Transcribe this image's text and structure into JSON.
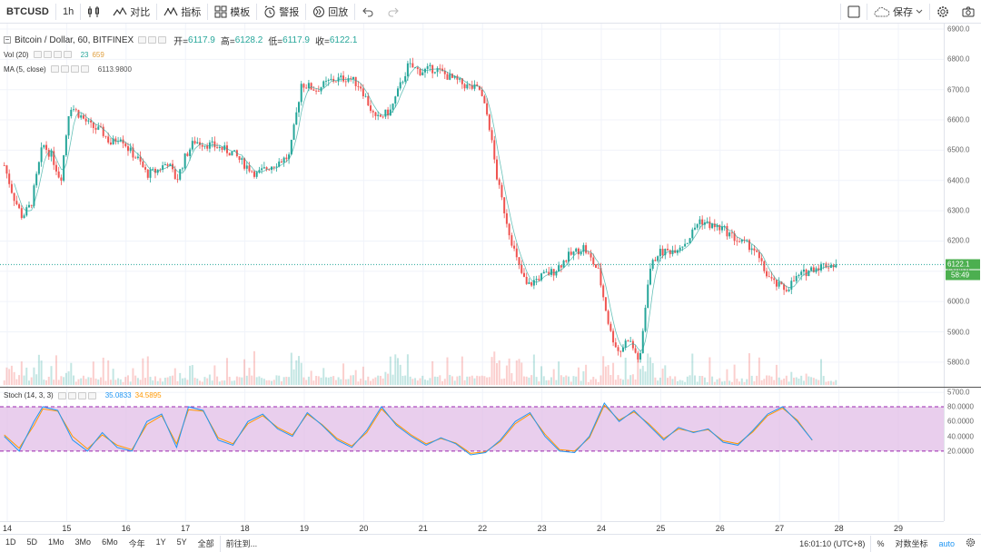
{
  "toolbar": {
    "symbol": "BTCUSD",
    "interval": "1h",
    "compare": "对比",
    "indicators": "指标",
    "templates": "模板",
    "alert": "警报",
    "replay": "回放",
    "save": "保存"
  },
  "legend": {
    "title": "Bitcoin / Dollar, 60, BITFINEX",
    "open_label": "开=",
    "open": "6117.9",
    "high_label": "高=",
    "high": "6128.2",
    "low_label": "低=",
    "low": "6117.9",
    "close_label": "收=",
    "close": "6122.1",
    "vol_label": "Vol (20)",
    "vol_a": "23",
    "vol_b": "659",
    "ma_label": "MA (5, close)",
    "ma_value": "6113.9800"
  },
  "price_axis": {
    "labels": [
      "6900.0",
      "6800.0",
      "6700.0",
      "6600.0",
      "6500.0",
      "6400.0",
      "6300.0",
      "6200.0",
      "6100.0",
      "6000.0",
      "5900.0",
      "5800.0",
      "5700.0"
    ],
    "last_price": "6122.1",
    "countdown": "58:49"
  },
  "stoch": {
    "label": "Stoch (14, 3, 3)",
    "k": "35.0833",
    "d": "34.5895",
    "axis_labels": [
      "80.0000",
      "60.0000",
      "40.0000",
      "20.0000"
    ]
  },
  "time_axis": [
    "14",
    "15",
    "16",
    "17",
    "18",
    "19",
    "20",
    "21",
    "22",
    "23",
    "24",
    "25",
    "26",
    "27",
    "28",
    "29"
  ],
  "bottombar": {
    "ranges": [
      "1D",
      "5D",
      "1Mo",
      "3Mo",
      "6Mo",
      "今年",
      "1Y",
      "5Y",
      "全部"
    ],
    "goto": "前往到...",
    "clock": "16:01:10 (UTC+8)",
    "percent": "%",
    "log_label": "对数坐标",
    "auto": "auto"
  },
  "colors": {
    "up": "#26a69a",
    "down": "#ef5350",
    "stoch_band": "#e1bee7",
    "k_line": "#2196f3",
    "d_line": "#ff9800"
  },
  "chart_data": {
    "type": "candlestick",
    "title": "Bitcoin / Dollar, 60, BITFINEX",
    "x": [
      "14",
      "15",
      "16",
      "17",
      "18",
      "19",
      "20",
      "21",
      "22",
      "23",
      "24",
      "25",
      "26",
      "27",
      "28"
    ],
    "ylim": [
      5700,
      6900
    ],
    "price_path": [
      [
        13.95,
        6450
      ],
      [
        14.1,
        6350
      ],
      [
        14.25,
        6280
      ],
      [
        14.4,
        6320
      ],
      [
        14.6,
        6520
      ],
      [
        14.75,
        6480
      ],
      [
        14.9,
        6400
      ],
      [
        15.05,
        6650
      ],
      [
        15.2,
        6620
      ],
      [
        15.4,
        6580
      ],
      [
        15.6,
        6560
      ],
      [
        15.75,
        6520
      ],
      [
        15.9,
        6550
      ],
      [
        16.05,
        6500
      ],
      [
        16.2,
        6470
      ],
      [
        16.35,
        6420
      ],
      [
        16.5,
        6430
      ],
      [
        16.7,
        6460
      ],
      [
        16.85,
        6400
      ],
      [
        17.0,
        6480
      ],
      [
        17.15,
        6530
      ],
      [
        17.35,
        6520
      ],
      [
        17.55,
        6510
      ],
      [
        17.8,
        6490
      ],
      [
        17.95,
        6460
      ],
      [
        18.2,
        6420
      ],
      [
        18.45,
        6450
      ],
      [
        18.75,
        6480
      ],
      [
        18.95,
        6720
      ],
      [
        19.2,
        6700
      ],
      [
        19.45,
        6730
      ],
      [
        19.75,
        6740
      ],
      [
        19.95,
        6710
      ],
      [
        20.2,
        6600
      ],
      [
        20.45,
        6630
      ],
      [
        20.75,
        6780
      ],
      [
        20.95,
        6760
      ],
      [
        21.2,
        6770
      ],
      [
        21.45,
        6740
      ],
      [
        21.75,
        6710
      ],
      [
        21.95,
        6700
      ],
      [
        22.1,
        6600
      ],
      [
        22.25,
        6400
      ],
      [
        22.45,
        6230
      ],
      [
        22.6,
        6120
      ],
      [
        22.75,
        6050
      ],
      [
        22.95,
        6080
      ],
      [
        23.2,
        6100
      ],
      [
        23.45,
        6150
      ],
      [
        23.7,
        6180
      ],
      [
        23.95,
        6100
      ],
      [
        24.15,
        5900
      ],
      [
        24.3,
        5830
      ],
      [
        24.45,
        5880
      ],
      [
        24.65,
        5800
      ],
      [
        24.8,
        6100
      ],
      [
        24.95,
        6160
      ],
      [
        25.2,
        6170
      ],
      [
        25.45,
        6200
      ],
      [
        25.65,
        6270
      ],
      [
        25.85,
        6250
      ],
      [
        26.05,
        6240
      ],
      [
        26.3,
        6200
      ],
      [
        26.55,
        6180
      ],
      [
        26.75,
        6100
      ],
      [
        26.9,
        6060
      ],
      [
        27.1,
        6040
      ],
      [
        27.3,
        6080
      ],
      [
        27.55,
        6110
      ],
      [
        27.75,
        6120
      ],
      [
        27.95,
        6122.1
      ]
    ],
    "stoch_k": [
      [
        13.95,
        40
      ],
      [
        14.2,
        20
      ],
      [
        14.45,
        60
      ],
      [
        14.6,
        80
      ],
      [
        14.85,
        75
      ],
      [
        15.1,
        35
      ],
      [
        15.35,
        20
      ],
      [
        15.6,
        45
      ],
      [
        15.85,
        25
      ],
      [
        16.1,
        20
      ],
      [
        16.35,
        60
      ],
      [
        16.6,
        70
      ],
      [
        16.85,
        25
      ],
      [
        17.05,
        80
      ],
      [
        17.3,
        75
      ],
      [
        17.55,
        35
      ],
      [
        17.8,
        28
      ],
      [
        18.05,
        60
      ],
      [
        18.3,
        70
      ],
      [
        18.55,
        50
      ],
      [
        18.8,
        40
      ],
      [
        19.05,
        72
      ],
      [
        19.3,
        55
      ],
      [
        19.55,
        35
      ],
      [
        19.8,
        25
      ],
      [
        20.05,
        48
      ],
      [
        20.3,
        80
      ],
      [
        20.55,
        55
      ],
      [
        20.8,
        40
      ],
      [
        21.05,
        28
      ],
      [
        21.3,
        38
      ],
      [
        21.55,
        30
      ],
      [
        21.8,
        15
      ],
      [
        22.05,
        18
      ],
      [
        22.3,
        35
      ],
      [
        22.55,
        60
      ],
      [
        22.8,
        72
      ],
      [
        23.05,
        40
      ],
      [
        23.3,
        20
      ],
      [
        23.55,
        18
      ],
      [
        23.8,
        40
      ],
      [
        24.05,
        85
      ],
      [
        24.3,
        60
      ],
      [
        24.55,
        75
      ],
      [
        24.8,
        55
      ],
      [
        25.05,
        35
      ],
      [
        25.3,
        52
      ],
      [
        25.55,
        45
      ],
      [
        25.8,
        50
      ],
      [
        26.05,
        32
      ],
      [
        26.3,
        28
      ],
      [
        26.55,
        48
      ],
      [
        26.8,
        70
      ],
      [
        27.05,
        80
      ],
      [
        27.3,
        60
      ],
      [
        27.55,
        35
      ]
    ],
    "stoch_d": [
      [
        13.95,
        42
      ],
      [
        14.2,
        24
      ],
      [
        14.45,
        55
      ],
      [
        14.6,
        77
      ],
      [
        14.85,
        74
      ],
      [
        15.1,
        40
      ],
      [
        15.35,
        23
      ],
      [
        15.6,
        42
      ],
      [
        15.85,
        28
      ],
      [
        16.1,
        22
      ],
      [
        16.35,
        56
      ],
      [
        16.6,
        68
      ],
      [
        16.85,
        30
      ],
      [
        17.05,
        76
      ],
      [
        17.3,
        74
      ],
      [
        17.55,
        38
      ],
      [
        17.8,
        30
      ],
      [
        18.05,
        57
      ],
      [
        18.3,
        68
      ],
      [
        18.55,
        52
      ],
      [
        18.8,
        42
      ],
      [
        19.05,
        70
      ],
      [
        19.3,
        56
      ],
      [
        19.55,
        37
      ],
      [
        19.8,
        27
      ],
      [
        20.05,
        45
      ],
      [
        20.3,
        77
      ],
      [
        20.55,
        57
      ],
      [
        20.8,
        42
      ],
      [
        21.05,
        30
      ],
      [
        21.3,
        37
      ],
      [
        21.55,
        31
      ],
      [
        21.8,
        17
      ],
      [
        22.05,
        19
      ],
      [
        22.3,
        33
      ],
      [
        22.55,
        57
      ],
      [
        22.8,
        70
      ],
      [
        23.05,
        43
      ],
      [
        23.3,
        22
      ],
      [
        23.55,
        20
      ],
      [
        23.8,
        38
      ],
      [
        24.05,
        82
      ],
      [
        24.3,
        62
      ],
      [
        24.55,
        73
      ],
      [
        24.8,
        57
      ],
      [
        25.05,
        37
      ],
      [
        25.3,
        50
      ],
      [
        25.55,
        46
      ],
      [
        25.8,
        49
      ],
      [
        26.05,
        34
      ],
      [
        26.3,
        30
      ],
      [
        26.55,
        46
      ],
      [
        26.8,
        68
      ],
      [
        27.05,
        78
      ],
      [
        27.3,
        62
      ],
      [
        27.55,
        34.59
      ]
    ],
    "stoch_levels": [
      80,
      20
    ]
  }
}
